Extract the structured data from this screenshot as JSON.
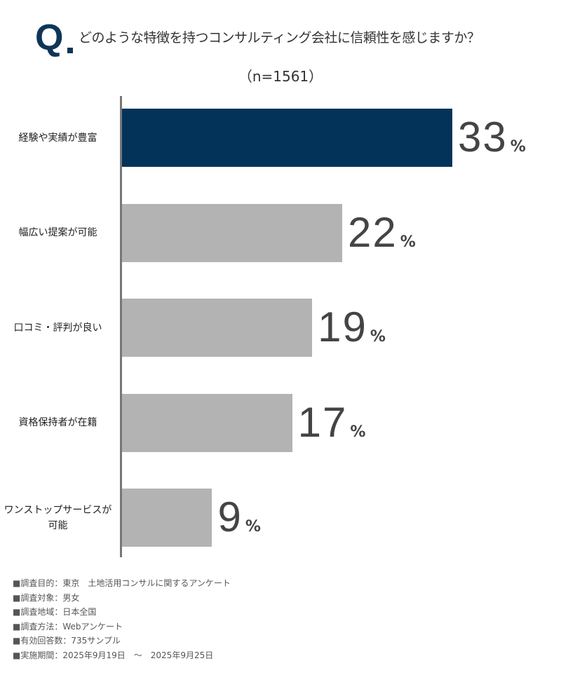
{
  "question_mark": "Q",
  "title": "どのような特徴を持つコンサルティング会社に信頼性を感じますか？",
  "sample": "（n=1561）",
  "chart_data": {
    "type": "bar",
    "orientation": "horizontal",
    "title": "どのような特徴を持つコンサルティング会社に信頼性を感じますか？",
    "subtitle": "（n=1561）",
    "categories": [
      "経験や実績が豊富",
      "幅広い提案が可能",
      "口コミ・評判が良い",
      "資格保持者が在籍",
      "ワンストップサービスが\n可能"
    ],
    "values": [
      33,
      22,
      19,
      17,
      9
    ],
    "unit": "%",
    "colors": [
      "#04335a",
      "#b3b3b3",
      "#b3b3b3",
      "#b3b3b3",
      "#b3b3b3"
    ],
    "xlim": [
      0,
      35
    ],
    "grid": false
  },
  "notes": [
    "■調査目的：東京　土地活用コンサルに関するアンケート",
    "■調査対象：男女",
    "■調査地域：日本全国",
    "■調査方法：Webアンケート",
    "■有効回答数：735サンプル",
    "■実施期間：2025年9月19日　～　2025年9月25日"
  ]
}
